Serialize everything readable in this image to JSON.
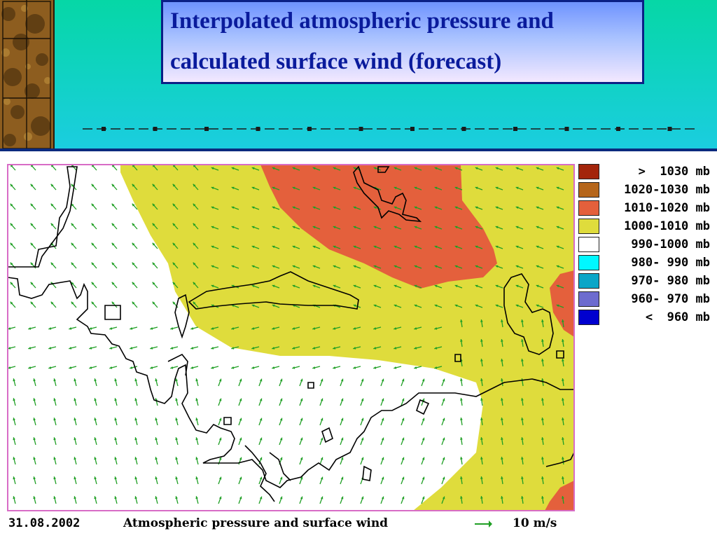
{
  "slide": {
    "title_line_1": "Interpolated atmospheric pressure and",
    "title_line_2": "calculated surface wind (forecast)",
    "colors": {
      "header_bg": "#0fd3c0",
      "title_text": "#0a1b9c",
      "title_border": "#0b1f86",
      "dash_line": "#1a1a1a"
    }
  },
  "map": {
    "date": "31.08.2002",
    "caption": "Atmospheric pressure and surface wind",
    "scale_label": "10 m/s",
    "wind_arrow_color": "#1f9f24",
    "border_color": "#d86cc6",
    "coastline_color": "#000000",
    "legend": [
      {
        "label": ">  1030",
        "unit": "mb",
        "color": "#a3250b"
      },
      {
        "label": "1020-1030",
        "unit": "mb",
        "color": "#b6661b"
      },
      {
        "label": "1010-1020",
        "unit": "mb",
        "color": "#e4603c"
      },
      {
        "label": "1000-1010",
        "unit": "mb",
        "color": "#dfdc3c"
      },
      {
        "label": "990-1000",
        "unit": "mb",
        "color": "#ffffff"
      },
      {
        "label": "980- 990",
        "unit": "mb",
        "color": "#00f8ff"
      },
      {
        "label": "970- 980",
        "unit": "mb",
        "color": "#0ba6c8"
      },
      {
        "label": "960- 970",
        "unit": "mb",
        "color": "#6d6ccf"
      },
      {
        "label": "<  960",
        "unit": "mb",
        "color": "#0000cf"
      }
    ]
  }
}
